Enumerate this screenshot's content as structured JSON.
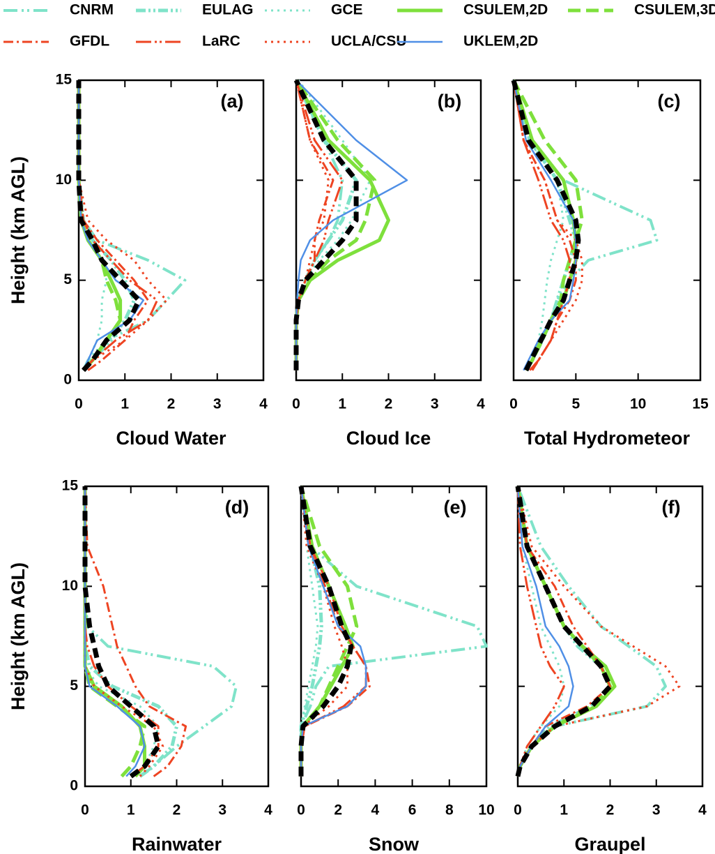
{
  "chart_data": [
    {
      "type": "line",
      "title": "(a)",
      "xlabel": "Cloud Water",
      "ylabel": "Height (km AGL)",
      "y": [
        0.5,
        1,
        2,
        3,
        4,
        5,
        6,
        7,
        8,
        10,
        12,
        15
      ],
      "xlim": [
        0,
        4
      ],
      "xticks": [
        0,
        1,
        2,
        3,
        4
      ],
      "ylim": [
        0,
        15
      ],
      "yticks": [
        0,
        5,
        10,
        15
      ],
      "series": [
        {
          "name": "CNRM",
          "color": "#7fe3c9",
          "style": "dashdotdot",
          "values": [
            0.1,
            0.2,
            0.6,
            1.5,
            1.9,
            2.3,
            1.5,
            0.4,
            0.1,
            0,
            0,
            0
          ]
        },
        {
          "name": "EULAG",
          "color": "#7fe3c9",
          "style": "dashdotdot-bold",
          "values": [
            0.1,
            0.3,
            0.7,
            1.0,
            1.2,
            1.0,
            0.7,
            0.3,
            0.1,
            0,
            0,
            0
          ]
        },
        {
          "name": "GCE",
          "color": "#7fe3c9",
          "style": "dotted",
          "values": [
            0.1,
            0.2,
            0.4,
            0.5,
            0.5,
            0.6,
            0.5,
            0.3,
            0.1,
            0,
            0,
            0
          ]
        },
        {
          "name": "CSULEM,2D",
          "color": "#7ee03c",
          "style": "solid-thick",
          "values": [
            0.1,
            0.3,
            0.6,
            0.9,
            0.9,
            0.7,
            0.5,
            0.2,
            0.05,
            0,
            0,
            0
          ]
        },
        {
          "name": "CSULEM,3D",
          "color": "#7ee03c",
          "style": "dashed-thick",
          "values": [
            0.1,
            0.3,
            0.6,
            0.9,
            0.8,
            0.6,
            0.5,
            0.2,
            0.05,
            0,
            0,
            0
          ]
        },
        {
          "name": "GFDL",
          "color": "#ee4422",
          "style": "dashdot",
          "values": [
            0.2,
            0.5,
            1.0,
            1.2,
            1.5,
            1.2,
            0.8,
            0.4,
            0.1,
            0,
            0,
            0
          ]
        },
        {
          "name": "LaRC",
          "color": "#ee4422",
          "style": "longdashdotdot",
          "values": [
            0.1,
            0.3,
            0.8,
            1.5,
            1.7,
            1.1,
            0.7,
            0.3,
            0.1,
            0,
            0,
            0
          ]
        },
        {
          "name": "UCLA/CSU",
          "color": "#ee4422",
          "style": "dotted",
          "values": [
            0.1,
            0.3,
            1.0,
            1.5,
            1.9,
            1.5,
            1.2,
            0.6,
            0.2,
            0,
            0,
            0
          ]
        },
        {
          "name": "UKLEM,2D",
          "color": "#4f8fe6",
          "style": "solid",
          "values": [
            0.1,
            0.2,
            0.4,
            1.1,
            1.4,
            0.8,
            0.5,
            0.2,
            0.05,
            0,
            0,
            0
          ]
        },
        {
          "color": "#000000",
          "style": "dashed-bold",
          "values": [
            0.1,
            0.3,
            0.6,
            1.1,
            1.3,
            0.9,
            0.5,
            0.3,
            0.05,
            0,
            0,
            0
          ]
        }
      ]
    },
    {
      "type": "line",
      "title": "(b)",
      "xlabel": "Cloud Ice",
      "y": [
        0.5,
        1,
        2,
        3,
        4,
        5,
        6,
        7,
        8,
        10,
        12,
        15
      ],
      "xlim": [
        0,
        4
      ],
      "xticks": [
        0,
        1,
        2,
        3,
        4
      ],
      "ylim": [
        0,
        15
      ],
      "series": [
        {
          "values": [
            0,
            0,
            0,
            0,
            0.05,
            0.2,
            0.4,
            0.7,
            0.9,
            1.0,
            0.6,
            0
          ]
        },
        {
          "values": [
            0,
            0,
            0,
            0,
            0.05,
            0.2,
            0.4,
            0.7,
            1.0,
            1.3,
            0.6,
            0
          ]
        },
        {
          "values": [
            0,
            0,
            0,
            0,
            0.05,
            0.2,
            0.5,
            0.9,
            1.2,
            1.6,
            1.0,
            0.05
          ]
        },
        {
          "values": [
            0,
            0,
            0,
            0,
            0.05,
            0.3,
            0.9,
            1.8,
            2.0,
            1.6,
            0.7,
            0
          ]
        },
        {
          "values": [
            0,
            0,
            0,
            0,
            0.05,
            0.3,
            0.7,
            1.3,
            1.5,
            1.7,
            0.9,
            0
          ]
        },
        {
          "values": [
            0,
            0,
            0,
            0,
            0.05,
            0.2,
            0.4,
            0.4,
            0.5,
            0.8,
            0.3,
            0
          ]
        },
        {
          "values": [
            0,
            0,
            0,
            0,
            0.05,
            0.2,
            0.4,
            0.6,
            0.7,
            1.0,
            0.4,
            0
          ]
        },
        {
          "values": [
            0,
            0,
            0,
            0,
            0.05,
            0.2,
            0.3,
            0.4,
            0.6,
            0.7,
            0.3,
            0
          ]
        },
        {
          "values": [
            0,
            0,
            0,
            0,
            0.02,
            0.05,
            0.1,
            0.3,
            0.8,
            2.4,
            1.3,
            0
          ]
        },
        {
          "values": [
            0,
            0,
            0,
            0,
            0.05,
            0.2,
            0.6,
            1.0,
            1.3,
            1.3,
            0.6,
            0
          ]
        }
      ]
    },
    {
      "type": "line",
      "title": "(c)",
      "xlabel": "Total Hydrometeor",
      "y": [
        0.5,
        1,
        2,
        3,
        4,
        5,
        6,
        7,
        8,
        10,
        12,
        15
      ],
      "xlim": [
        0,
        15
      ],
      "xticks": [
        0,
        5,
        10,
        15
      ],
      "ylim": [
        0,
        15
      ],
      "series": [
        {
          "values": [
            1,
            1.5,
            2.3,
            3,
            3.5,
            4.5,
            6,
            11.5,
            11,
            4,
            1.5,
            0
          ]
        },
        {
          "values": [
            1,
            1.5,
            2.3,
            3,
            3.5,
            4,
            4.5,
            5,
            4.5,
            3.5,
            1.3,
            0
          ]
        },
        {
          "values": [
            1,
            1.5,
            2,
            2.3,
            2.5,
            2.7,
            3,
            3.5,
            4,
            3.5,
            1.2,
            0
          ]
        },
        {
          "values": [
            1,
            1.5,
            2.2,
            3,
            4,
            4.5,
            5,
            5,
            4.8,
            4,
            1.5,
            0
          ]
        },
        {
          "values": [
            1,
            1.5,
            2.3,
            3,
            3.8,
            4,
            4.5,
            5,
            5.5,
            5,
            2.5,
            0
          ]
        },
        {
          "values": [
            1.5,
            2,
            3,
            3.5,
            4.5,
            5,
            5,
            4.5,
            3.5,
            2.5,
            0.8,
            0
          ]
        },
        {
          "values": [
            1.3,
            2,
            3,
            3.5,
            4,
            4.5,
            4.5,
            4,
            3,
            2,
            0.8,
            0
          ]
        },
        {
          "values": [
            1.5,
            2,
            3,
            4,
            5,
            5.5,
            5.5,
            5,
            3.5,
            2.5,
            0.8,
            0
          ]
        },
        {
          "values": [
            0.8,
            1.2,
            2,
            3,
            4.5,
            4.8,
            5,
            5,
            4.8,
            3,
            1,
            0
          ]
        },
        {
          "values": [
            1,
            1.4,
            2.2,
            3,
            4,
            4.5,
            5,
            5.2,
            5,
            3.5,
            1.2,
            0
          ]
        }
      ]
    },
    {
      "type": "line",
      "title": "(d)",
      "xlabel": "Rainwater",
      "ylabel": "Height (km AGL)",
      "y": [
        0.5,
        1,
        2,
        3,
        4,
        5,
        6,
        7,
        8,
        10,
        12,
        15
      ],
      "xlim": [
        0,
        4
      ],
      "xticks": [
        0,
        1,
        2,
        3,
        4
      ],
      "ylim": [
        0,
        15
      ],
      "yticks": [
        0,
        5,
        10,
        15
      ],
      "series": [
        {
          "values": [
            1.2,
            1.5,
            2,
            2.6,
            3.2,
            3.3,
            2.8,
            0.5,
            0.05,
            0,
            0,
            0
          ]
        },
        {
          "values": [
            1.2,
            1.5,
            1.9,
            2,
            1.6,
            0.6,
            0.1,
            0,
            0,
            0,
            0,
            0
          ]
        },
        {
          "values": [
            1.1,
            1.3,
            1.5,
            1.6,
            1.2,
            0.3,
            0,
            0,
            0,
            0,
            0,
            0
          ]
        },
        {
          "values": [
            1.1,
            1.3,
            1.3,
            1.2,
            0.8,
            0.2,
            0,
            0,
            0,
            0,
            0,
            0
          ]
        },
        {
          "values": [
            0.8,
            1,
            1.2,
            1.3,
            0.7,
            0.1,
            0,
            0,
            0,
            0,
            0,
            0
          ]
        },
        {
          "values": [
            1.5,
            1.8,
            2.1,
            2.2,
            1.4,
            1.1,
            0.9,
            0.7,
            0.6,
            0.4,
            0.05,
            0
          ]
        },
        {
          "values": [
            1,
            1.3,
            1.6,
            1.6,
            1,
            0.5,
            0.2,
            0.05,
            0,
            0,
            0,
            0
          ]
        },
        {
          "values": [
            1.2,
            1.4,
            1.7,
            1.5,
            0.8,
            0.2,
            0,
            0,
            0,
            0,
            0,
            0
          ]
        },
        {
          "values": [
            0.9,
            1.1,
            1.3,
            1.2,
            0.7,
            0.1,
            0,
            0,
            0,
            0,
            0,
            0
          ]
        },
        {
          "values": [
            1,
            1.3,
            1.6,
            1.5,
            1.0,
            0.5,
            0.3,
            0.2,
            0.1,
            0,
            0,
            0
          ]
        }
      ]
    },
    {
      "type": "line",
      "title": "(e)",
      "xlabel": "Snow",
      "y": [
        0.5,
        1,
        2,
        3,
        4,
        5,
        6,
        7,
        8,
        10,
        12,
        15
      ],
      "xlim": [
        0,
        10
      ],
      "xticks": [
        0,
        2,
        4,
        6,
        8,
        10
      ],
      "ylim": [
        0,
        15
      ],
      "series": [
        {
          "values": [
            0,
            0,
            0,
            0,
            0.5,
            0.8,
            1.5,
            10,
            9.5,
            3,
            0.5,
            0
          ]
        },
        {
          "values": [
            0,
            0,
            0,
            0,
            0.3,
            0.6,
            0.8,
            1,
            1.1,
            1,
            0.5,
            0
          ]
        },
        {
          "values": [
            0,
            0,
            0,
            0,
            0.2,
            0.4,
            0.6,
            0.8,
            0.9,
            0.6,
            0.3,
            0
          ]
        },
        {
          "values": [
            0,
            0,
            0,
            0.1,
            1,
            1.6,
            2.2,
            2.8,
            2.4,
            1.5,
            0.6,
            0
          ]
        },
        {
          "values": [
            0,
            0,
            0,
            0.1,
            1,
            1.5,
            2,
            2.5,
            3,
            2.5,
            1,
            0
          ]
        },
        {
          "values": [
            0,
            0,
            0,
            0.2,
            2.5,
            3.7,
            3.5,
            2.8,
            2.2,
            1.5,
            0.5,
            0
          ]
        },
        {
          "values": [
            0,
            0,
            0,
            0.2,
            2.3,
            3.5,
            3.5,
            2.8,
            2,
            1.3,
            0.4,
            0
          ]
        },
        {
          "values": [
            0,
            0,
            0,
            0.1,
            1.5,
            2.5,
            2.5,
            2.2,
            1.8,
            1.2,
            0.3,
            0
          ]
        },
        {
          "values": [
            0,
            0,
            0,
            0.1,
            2.5,
            3.5,
            3.5,
            3.2,
            2,
            1.2,
            0.4,
            0
          ]
        },
        {
          "values": [
            0,
            0,
            0,
            0.1,
            1.2,
            2,
            2.5,
            2.7,
            2.2,
            1.5,
            0.5,
            0
          ]
        }
      ]
    },
    {
      "type": "line",
      "title": "(f)",
      "xlabel": "Graupel",
      "y": [
        0.5,
        1,
        2,
        3,
        4,
        5,
        6,
        7,
        8,
        10,
        12,
        15
      ],
      "xlim": [
        0,
        4
      ],
      "xticks": [
        0,
        1,
        2,
        3,
        4
      ],
      "ylim": [
        0,
        15
      ],
      "series": [
        {
          "values": [
            0,
            0.05,
            0.3,
            0.8,
            2.8,
            3.2,
            3,
            2.4,
            1.8,
            1.1,
            0.5,
            0
          ]
        },
        {
          "values": [
            0,
            0.05,
            0.3,
            0.7,
            1.6,
            2,
            1.8,
            1.3,
            1,
            0.6,
            0.2,
            0
          ]
        },
        {
          "values": [
            0,
            0.05,
            0.2,
            0.5,
            0.9,
            1,
            0.9,
            0.7,
            0.5,
            0.3,
            0.1,
            0
          ]
        },
        {
          "values": [
            0,
            0.05,
            0.3,
            0.8,
            1.7,
            2.1,
            1.9,
            1.4,
            1,
            0.6,
            0.2,
            0
          ]
        },
        {
          "values": [
            0,
            0.05,
            0.3,
            0.8,
            1.6,
            2,
            1.8,
            1.4,
            1,
            0.6,
            0.2,
            0
          ]
        },
        {
          "values": [
            0,
            0.05,
            0.3,
            0.6,
            1.5,
            2,
            1.8,
            1.5,
            1.2,
            0.8,
            0.2,
            0
          ]
        },
        {
          "values": [
            0,
            0.05,
            0.2,
            0.5,
            0.8,
            1,
            0.7,
            0.5,
            0.4,
            0.2,
            0.05,
            0
          ]
        },
        {
          "values": [
            0,
            0.05,
            0.3,
            0.8,
            2.8,
            3.5,
            3.2,
            2.5,
            1.8,
            1,
            0.3,
            0
          ]
        },
        {
          "values": [
            0,
            0.05,
            0.3,
            0.6,
            1.1,
            1.2,
            1.1,
            0.9,
            0.6,
            0.4,
            0.1,
            0
          ]
        },
        {
          "values": [
            0,
            0.05,
            0.3,
            0.8,
            1.6,
            2,
            1.8,
            1.4,
            1,
            0.6,
            0.2,
            0
          ]
        }
      ]
    }
  ]
}
